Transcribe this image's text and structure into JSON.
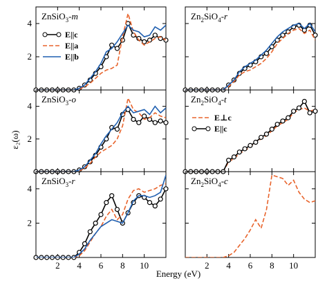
{
  "colors": {
    "E_par_c": "#000000",
    "E_par_a": "#e8632b",
    "E_par_b": "#1f5fb0",
    "E_perp_c": "#e8632b"
  },
  "chart_data": {
    "type": "line",
    "xlabel": "Energy (eV)",
    "ylabel": "ε₂(ω)",
    "xlim": [
      0,
      12
    ],
    "ylim": [
      0,
      5
    ],
    "x_ticks": [
      2,
      4,
      6,
      8,
      10
    ],
    "y_ticks": [
      2,
      4
    ],
    "panels": [
      {
        "title_main": "ZnSiO",
        "title_sub": "3",
        "title_suffix": "-m",
        "legend": true,
        "series": [
          {
            "name": "E||c",
            "label_main": "E||c",
            "style": "solid-circle",
            "color": "#000000",
            "x": [
              0,
              0.5,
              1,
              1.5,
              2,
              2.5,
              3,
              3.5,
              4,
              4.5,
              5,
              5.5,
              6,
              6.5,
              7,
              7.5,
              8,
              8.5,
              9,
              9.5,
              10,
              10.5,
              11,
              11.5,
              12
            ],
            "y": [
              0,
              0,
              0,
              0,
              0,
              0,
              0,
              0,
              0.1,
              0.3,
              0.6,
              1.0,
              1.4,
              2.0,
              2.7,
              2.5,
              3.0,
              4.0,
              3.3,
              3.1,
              2.9,
              3.0,
              3.3,
              3.1,
              3.0
            ]
          },
          {
            "name": "E||a",
            "label_main": "E||a",
            "style": "dashed",
            "color": "#e8632b",
            "x": [
              0,
              0.5,
              1,
              1.5,
              2,
              2.5,
              3,
              3.5,
              4,
              4.5,
              5,
              5.5,
              6,
              6.5,
              7,
              7.5,
              8,
              8.5,
              9,
              9.5,
              10,
              10.5,
              11,
              11.5,
              12
            ],
            "y": [
              0,
              0,
              0,
              0,
              0,
              0,
              0,
              0,
              0.05,
              0.2,
              0.4,
              0.7,
              1.0,
              1.2,
              1.3,
              1.5,
              3.2,
              4.6,
              3.5,
              3.0,
              2.7,
              2.9,
              3.1,
              3.2,
              3.0
            ]
          },
          {
            "name": "E||b",
            "label_main": "E||b",
            "style": "solid",
            "color": "#1f5fb0",
            "x": [
              0,
              0.5,
              1,
              1.5,
              2,
              2.5,
              3,
              3.5,
              4,
              4.5,
              5,
              5.5,
              6,
              6.5,
              7,
              7.5,
              8,
              8.5,
              9,
              9.5,
              10,
              10.5,
              11,
              11.5,
              12
            ],
            "y": [
              0,
              0,
              0,
              0,
              0,
              0,
              0,
              0,
              0.1,
              0.3,
              0.7,
              1.1,
              1.6,
              2.3,
              2.5,
              2.9,
              3.4,
              3.9,
              3.6,
              3.5,
              3.2,
              3.3,
              3.8,
              3.6,
              3.9
            ]
          }
        ]
      },
      {
        "title_main": "Zn",
        "title_sub": "2",
        "title_mid": "SiO",
        "title_sub2": "4",
        "title_suffix": "-r",
        "legend": false,
        "series": [
          {
            "name": "E||c",
            "style": "solid-circle",
            "color": "#000000",
            "x": [
              0,
              0.5,
              1,
              1.5,
              2,
              2.5,
              3,
              3.5,
              4,
              4.5,
              5,
              5.5,
              6,
              6.5,
              7,
              7.5,
              8,
              8.5,
              9,
              9.5,
              10,
              10.5,
              11,
              11.5,
              12
            ],
            "y": [
              0,
              0,
              0,
              0,
              0,
              0,
              0,
              0,
              0.3,
              0.6,
              1.0,
              1.3,
              1.5,
              1.7,
              2.0,
              2.2,
              2.6,
              3.0,
              3.3,
              3.5,
              3.8,
              3.9,
              3.6,
              3.9,
              3.3
            ]
          },
          {
            "name": "E⊥c",
            "style": "dashed",
            "color": "#e8632b",
            "x": [
              0,
              0.5,
              1,
              1.5,
              2,
              2.5,
              3,
              3.5,
              4,
              4.5,
              5,
              5.5,
              6,
              6.5,
              7,
              7.5,
              8,
              8.5,
              9,
              9.5,
              10,
              10.5,
              11,
              11.5,
              12
            ],
            "y": [
              0,
              0,
              0,
              0,
              0,
              0,
              0,
              0,
              0.2,
              0.5,
              0.9,
              1.1,
              1.2,
              1.4,
              1.6,
              1.9,
              2.3,
              2.8,
              3.1,
              3.4,
              3.6,
              3.7,
              3.4,
              3.6,
              3.0
            ]
          },
          {
            "name": "E||b",
            "style": "solid",
            "color": "#1f5fb0",
            "x": [
              0,
              0.5,
              1,
              1.5,
              2,
              2.5,
              3,
              3.5,
              4,
              4.5,
              5,
              5.5,
              6,
              6.5,
              7,
              7.5,
              8,
              8.5,
              9,
              9.5,
              10,
              10.5,
              11,
              11.5,
              12
            ],
            "y": [
              0,
              0,
              0,
              0,
              0,
              0,
              0,
              0,
              0.3,
              0.6,
              1.1,
              1.4,
              1.6,
              1.8,
              2.1,
              2.4,
              2.8,
              3.2,
              3.5,
              3.7,
              3.9,
              4.0,
              3.7,
              4.0,
              3.5
            ]
          }
        ]
      },
      {
        "title_main": "ZnSiO",
        "title_sub": "3",
        "title_suffix": "-o",
        "legend": false,
        "series": [
          {
            "name": "E||c",
            "style": "solid-circle",
            "color": "#000000",
            "x": [
              0,
              0.5,
              1,
              1.5,
              2,
              2.5,
              3,
              3.5,
              4,
              4.5,
              5,
              5.5,
              6,
              6.5,
              7,
              7.5,
              8,
              8.5,
              9,
              9.5,
              10,
              10.5,
              11,
              11.5,
              12
            ],
            "y": [
              0,
              0,
              0,
              0,
              0,
              0,
              0,
              0,
              0.1,
              0.3,
              0.6,
              1.0,
              1.5,
              2.0,
              2.7,
              2.6,
              3.5,
              3.8,
              3.2,
              3.0,
              3.4,
              3.2,
              3.0,
              3.1,
              3.0
            ]
          },
          {
            "name": "E||a",
            "style": "dashed",
            "color": "#e8632b",
            "x": [
              0,
              0.5,
              1,
              1.5,
              2,
              2.5,
              3,
              3.5,
              4,
              4.5,
              5,
              5.5,
              6,
              6.5,
              7,
              7.5,
              8,
              8.5,
              9,
              9.5,
              10,
              10.5,
              11,
              11.5,
              12
            ],
            "y": [
              0,
              0,
              0,
              0,
              0,
              0,
              0,
              0,
              0.05,
              0.2,
              0.5,
              0.9,
              1.2,
              1.4,
              1.6,
              2.0,
              2.8,
              4.5,
              3.8,
              3.6,
              3.2,
              3.3,
              3.6,
              3.4,
              3.3
            ]
          },
          {
            "name": "E||b",
            "style": "solid",
            "color": "#1f5fb0",
            "x": [
              0,
              0.5,
              1,
              1.5,
              2,
              2.5,
              3,
              3.5,
              4,
              4.5,
              5,
              5.5,
              6,
              6.5,
              7,
              7.5,
              8,
              8.5,
              9,
              9.5,
              10,
              10.5,
              11,
              11.5,
              12
            ],
            "y": [
              0,
              0,
              0,
              0,
              0,
              0,
              0,
              0,
              0.1,
              0.3,
              0.7,
              1.1,
              1.7,
              2.2,
              2.6,
              3.0,
              3.6,
              4.0,
              3.6,
              3.7,
              3.8,
              3.5,
              4.0,
              3.6,
              3.9
            ]
          }
        ]
      },
      {
        "title_main": "Zn",
        "title_sub": "2",
        "title_mid": "SiO",
        "title_sub2": "4",
        "title_suffix": "-t",
        "legend": true,
        "series": [
          {
            "name": "E⊥c",
            "label_main": "E⊥c",
            "style": "dashed",
            "color": "#e8632b",
            "x": [
              0,
              0.5,
              1,
              1.5,
              2,
              2.5,
              3,
              3.5,
              4,
              4.5,
              5,
              5.5,
              6,
              6.5,
              7,
              7.5,
              8,
              8.5,
              9,
              9.5,
              10,
              10.5,
              11,
              11.5,
              12
            ],
            "y": [
              0,
              0,
              0,
              0,
              0,
              0,
              0,
              0,
              0.6,
              0.8,
              1.1,
              1.3,
              1.5,
              1.8,
              2.0,
              2.2,
              2.5,
              2.8,
              3.0,
              3.2,
              3.6,
              3.8,
              3.9,
              3.7,
              3.8
            ]
          },
          {
            "name": "E||c",
            "label_main": "E||c",
            "style": "solid-circle",
            "color": "#000000",
            "x": [
              0,
              0.5,
              1,
              1.5,
              2,
              2.5,
              3,
              3.5,
              4,
              4.5,
              5,
              5.5,
              6,
              6.5,
              7,
              7.5,
              8,
              8.5,
              9,
              9.5,
              10,
              10.5,
              11,
              11.5,
              12
            ],
            "y": [
              0,
              0,
              0,
              0,
              0,
              0,
              0,
              0,
              0.7,
              0.9,
              1.2,
              1.4,
              1.6,
              1.8,
              2.1,
              2.3,
              2.6,
              2.9,
              3.1,
              3.3,
              3.7,
              3.9,
              4.3,
              3.6,
              3.7
            ]
          }
        ]
      },
      {
        "title_main": "ZnSiO",
        "title_sub": "3",
        "title_suffix": "-r",
        "legend": false,
        "series": [
          {
            "name": "E||c",
            "style": "solid-circle",
            "color": "#000000",
            "x": [
              0,
              0.5,
              1,
              1.5,
              2,
              2.5,
              3,
              3.5,
              4,
              4.5,
              5,
              5.5,
              6,
              6.5,
              7,
              7.5,
              8,
              8.5,
              9,
              9.5,
              10,
              10.5,
              11,
              11.5,
              12
            ],
            "y": [
              0,
              0,
              0,
              0,
              0,
              0,
              0,
              0,
              0.3,
              0.8,
              1.5,
              2.0,
              2.5,
              3.2,
              3.6,
              2.8,
              2.0,
              2.6,
              3.2,
              3.6,
              3.5,
              3.2,
              3.0,
              3.4,
              4.0
            ]
          },
          {
            "name": "E||a",
            "style": "dashed",
            "color": "#e8632b",
            "x": [
              0,
              0.5,
              1,
              1.5,
              2,
              2.5,
              3,
              3.5,
              4,
              4.5,
              5,
              5.5,
              6,
              6.5,
              7,
              7.5,
              8,
              8.5,
              9,
              9.5,
              10,
              10.5,
              11,
              11.5,
              12
            ],
            "y": [
              0,
              0,
              0,
              0,
              0,
              0,
              0,
              0,
              0.1,
              0.4,
              0.9,
              1.4,
              1.8,
              2.4,
              2.8,
              2.2,
              2.5,
              3.4,
              3.9,
              4.0,
              3.8,
              3.9,
              4.0,
              4.2,
              4.3
            ]
          },
          {
            "name": "E||b",
            "style": "solid",
            "color": "#1f5fb0",
            "x": [
              0,
              0.5,
              1,
              1.5,
              2,
              2.5,
              3,
              3.5,
              4,
              4.5,
              5,
              5.5,
              6,
              6.5,
              7,
              7.5,
              8,
              8.5,
              9,
              9.5,
              10,
              10.5,
              11,
              11.5,
              12
            ],
            "y": [
              0,
              0,
              0,
              0,
              0,
              0,
              0,
              0,
              0.2,
              0.5,
              1.0,
              1.4,
              1.8,
              2.0,
              2.2,
              2.1,
              2.0,
              2.6,
              3.3,
              3.6,
              3.6,
              3.5,
              3.6,
              3.8,
              4.8
            ]
          }
        ]
      },
      {
        "title_main": "Zn",
        "title_sub": "2",
        "title_mid": "SiO",
        "title_sub2": "4",
        "title_suffix": "-c",
        "legend": false,
        "series": [
          {
            "name": "E⊥c",
            "style": "dashed",
            "color": "#e8632b",
            "x": [
              0,
              0.5,
              1,
              1.5,
              2,
              2.5,
              3,
              3.5,
              4,
              4.5,
              5,
              5.5,
              6,
              6.5,
              7,
              7.5,
              8,
              8.5,
              9,
              9.5,
              10,
              10.5,
              11,
              11.5,
              12
            ],
            "y": [
              0,
              0,
              0,
              0,
              0,
              0,
              0,
              0,
              0.1,
              0.3,
              0.7,
              1.1,
              1.6,
              2.2,
              1.7,
              2.8,
              4.8,
              4.7,
              4.6,
              4.2,
              4.5,
              3.8,
              3.4,
              3.2,
              3.3
            ]
          }
        ]
      }
    ]
  }
}
